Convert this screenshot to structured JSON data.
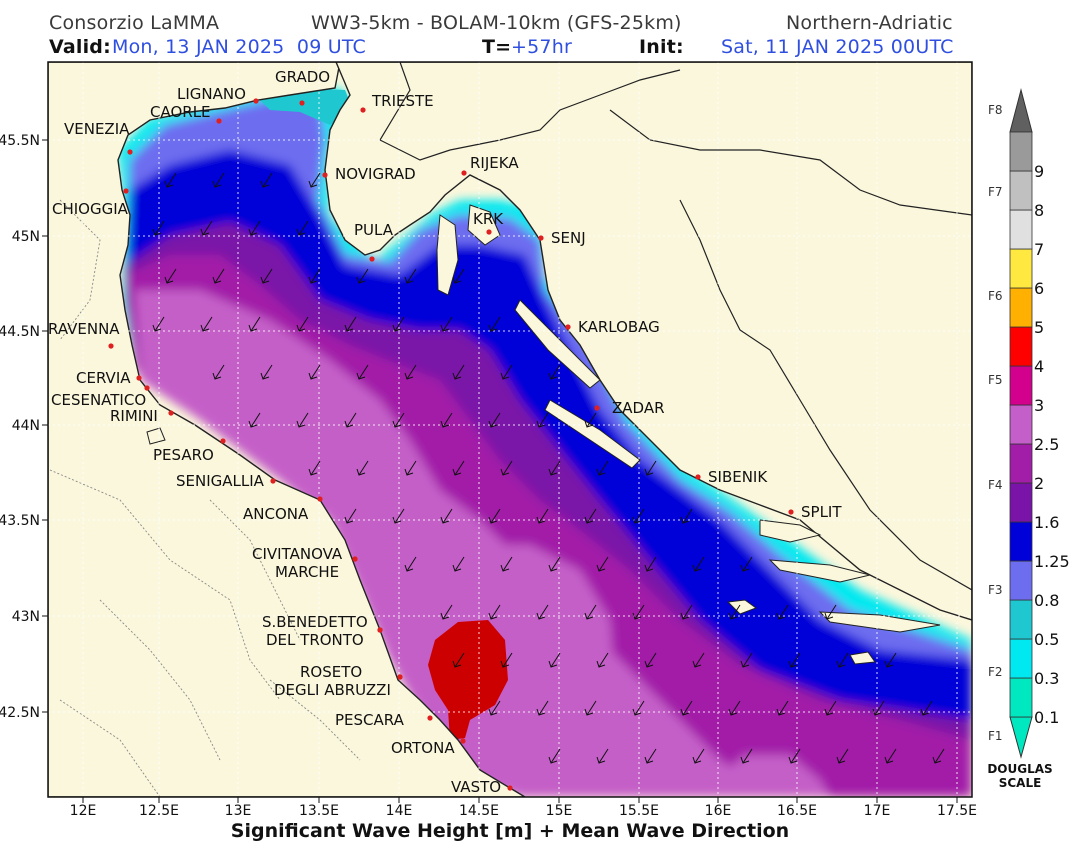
{
  "header": {
    "source": "Consorzio LaMMA",
    "models": "WW3-5km - BOLAM-10km (GFS-25km)",
    "region": "Northern-Adriatic",
    "valid_label": "Valid:",
    "valid_value": "Mon, 13 JAN 2025  09 UTC",
    "lead_label": "T=",
    "lead_value": "+57hr",
    "init_label": "Init:",
    "init_value": "Sat, 11 JAN 2025 00UTC"
  },
  "footer": {
    "caption": "Significant Wave Height [m] + Mean Wave Direction"
  },
  "axes": {
    "x_ticks": [
      "12E",
      "12.5E",
      "13E",
      "13.5E",
      "14E",
      "14.5E",
      "15E",
      "15.5E",
      "16E",
      "16.5E",
      "17E",
      "17.5E"
    ],
    "y_ticks": [
      "45.5N",
      "45N",
      "44.5N",
      "44N",
      "43.5N",
      "43N",
      "42.5N"
    ]
  },
  "cities": [
    {
      "name": "TRIESTE"
    },
    {
      "name": "GRADO"
    },
    {
      "name": "LIGNANO"
    },
    {
      "name": "CAORLE"
    },
    {
      "name": "VENEZIA"
    },
    {
      "name": "CHIOGGIA"
    },
    {
      "name": "NOVIGRAD"
    },
    {
      "name": "PULA"
    },
    {
      "name": "RIJEKA"
    },
    {
      "name": "KRK"
    },
    {
      "name": "SENJ"
    },
    {
      "name": "KARLOBAG"
    },
    {
      "name": "ZADAR"
    },
    {
      "name": "SIBENIK"
    },
    {
      "name": "SPLIT"
    },
    {
      "name": "RAVENNA"
    },
    {
      "name": "CERVIA"
    },
    {
      "name": "CESENATICO"
    },
    {
      "name": "RIMINI"
    },
    {
      "name": "PESARO"
    },
    {
      "name": "SENIGALLIA"
    },
    {
      "name": "ANCONA"
    },
    {
      "name": "CIVITANOVA"
    },
    {
      "name": "MARCHE"
    },
    {
      "name": "S.BENEDETTO"
    },
    {
      "name": "DEL TRONTO"
    },
    {
      "name": "ROSETO"
    },
    {
      "name": "DEGLI ABRUZZI"
    },
    {
      "name": "PESCARA"
    },
    {
      "name": "ORTONA"
    },
    {
      "name": "VASTO"
    }
  ],
  "scale": {
    "title_line1": "DOUGLAS",
    "title_line2": "SCALE",
    "bins": [
      {
        "label": "0.1",
        "color": "#00e8c0"
      },
      {
        "label": "0.3",
        "color": "#00e8f0"
      },
      {
        "label": "0.5",
        "color": "#1fc8d0"
      },
      {
        "label": "0.8",
        "color": "#6d6df0"
      },
      {
        "label": "1.25",
        "color": "#0000d8"
      },
      {
        "label": "1.6",
        "color": "#7a14a8"
      },
      {
        "label": "2",
        "color": "#a21ea8"
      },
      {
        "label": "2.5",
        "color": "#c45ec8"
      },
      {
        "label": "3",
        "color": "#d2008c"
      },
      {
        "label": "4",
        "color": "#ff0000"
      },
      {
        "label": "5",
        "color": "#ffb000"
      },
      {
        "label": "6",
        "color": "#ffe840"
      },
      {
        "label": "7",
        "color": "#e0e0e0"
      },
      {
        "label": "8",
        "color": "#c0c0c0"
      },
      {
        "label": "9",
        "color": "#9a9a9a"
      }
    ],
    "top_color": "#606060",
    "force_labels": [
      "F1",
      "F2",
      "F3",
      "F4",
      "F5",
      "F6",
      "F7",
      "F8"
    ],
    "colors": {
      "land": "#fbf7dc",
      "max_area": "#cc0000"
    }
  }
}
